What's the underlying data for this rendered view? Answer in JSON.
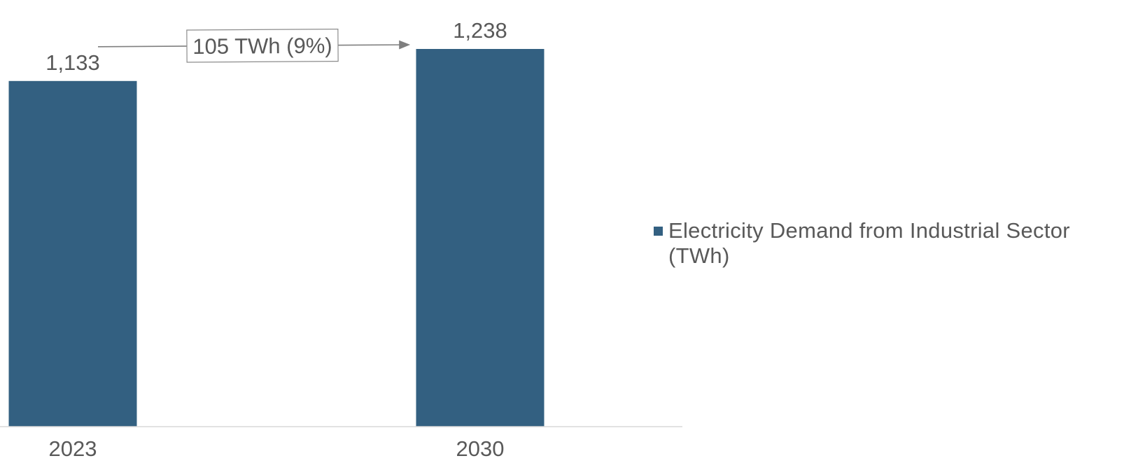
{
  "chart_data": {
    "type": "bar",
    "categories": [
      "2023",
      "2030"
    ],
    "series": [
      {
        "name": "Electricity Demand from Industrial Sector (TWh)",
        "values": [
          1133,
          1238
        ],
        "color": "#336081"
      }
    ],
    "data_labels": [
      "1,133",
      "1,238"
    ],
    "annotation": {
      "text": "105 TWh (9%)",
      "from": "2023",
      "to": "2030"
    },
    "axis_color": "#d9d9d9",
    "arrow_color": "#7f7f7f",
    "legend_position": "right",
    "grid": false
  }
}
